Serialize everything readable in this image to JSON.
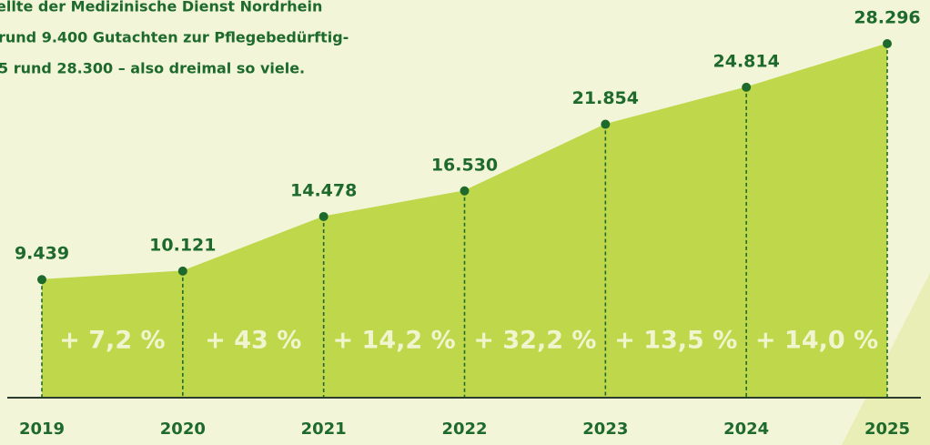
{
  "chart_data": {
    "type": "area",
    "title_lines": [
      "ellte der Medizinische Dienst Nordrhein",
      "rund 9.400 Gutachten zur Pflegebedürftig-",
      "5 rund 28.300 – also dreimal so viele."
    ],
    "categories": [
      "2019",
      "2020",
      "2021",
      "2022",
      "2023",
      "2024",
      "2025"
    ],
    "values": [
      9439,
      10121,
      14478,
      16530,
      21854,
      24814,
      28296
    ],
    "value_labels": [
      "9.439",
      "10.121",
      "14.478",
      "16.530",
      "21.854",
      "24.814",
      "28.296"
    ],
    "annotations": [
      "+ 7,2 %",
      "+ 43 %",
      "+ 14,2 %",
      "+ 32,2 %",
      "+ 13,5 %",
      "+ 14,0 %"
    ],
    "color": "#bfd74a",
    "line_color": "#1e6a2c"
  }
}
